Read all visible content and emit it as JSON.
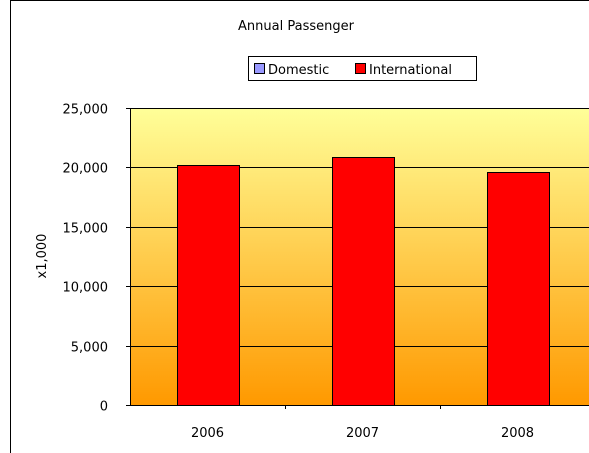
{
  "chart_data": {
    "type": "bar",
    "title": "Annual Passenger",
    "xlabel": "",
    "ylabel": "x1,000",
    "categories": [
      "2006",
      "2007",
      "2008"
    ],
    "series": [
      {
        "name": "Domestic",
        "values": [
          0,
          0,
          0
        ],
        "color": "#9999ff"
      },
      {
        "name": "International",
        "values": [
          20200,
          20850,
          19650
        ],
        "color": "#ff0000"
      }
    ],
    "ylim": [
      0,
      25000
    ],
    "yticks": [
      "0",
      "5,000",
      "10,000",
      "15,000",
      "20,000",
      "25,000"
    ],
    "ytick_values": [
      0,
      5000,
      10000,
      15000,
      20000,
      25000
    ],
    "grid": true,
    "legend_position": "top",
    "plot_background": [
      "#ffff99",
      "#ff9900"
    ]
  }
}
